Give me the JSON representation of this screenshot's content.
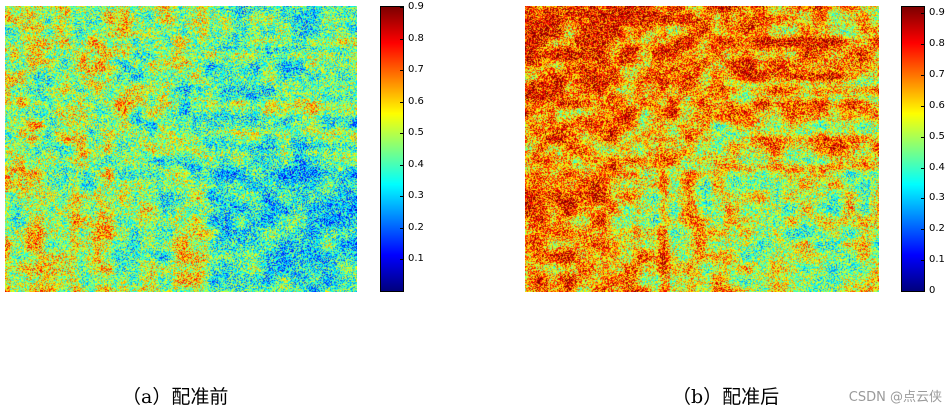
{
  "chart_data": [
    {
      "type": "heatmap",
      "colormap": "jet",
      "caption": "（a）配准前",
      "colorbar": {
        "ticks": [
          "0.1",
          "0.2",
          "0.3",
          "0.4",
          "0.5",
          "0.6",
          "0.7",
          "0.8",
          "0.9"
        ],
        "range": [
          0.0,
          0.9
        ]
      },
      "value_range": [
        0.0,
        0.9
      ],
      "dominant_range": [
        0.25,
        0.65
      ]
    },
    {
      "type": "heatmap",
      "colormap": "jet",
      "caption": "（b）配准后",
      "colorbar": {
        "ticks": [
          "0",
          "0.1",
          "0.2",
          "0.3",
          "0.4",
          "0.5",
          "0.6",
          "0.7",
          "0.8",
          "0.9"
        ],
        "range": [
          0.0,
          0.92
        ]
      },
      "value_range": [
        0.0,
        0.92
      ],
      "dominant_range": [
        0.3,
        0.8
      ]
    }
  ],
  "watermark": "CSDN @点云侠"
}
